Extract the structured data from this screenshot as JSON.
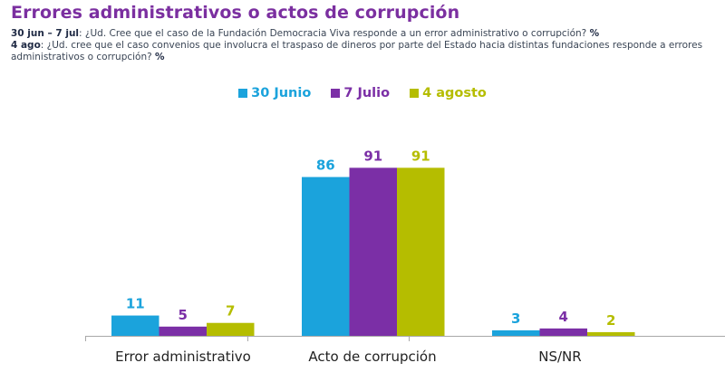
{
  "header": {
    "title": "Errores administrativos o actos de corrupción",
    "q1_label": "30 jun – 7 jul",
    "q1_text": ": ¿Ud. Cree que el caso de la Fundación Democracia Viva responde a un error administrativo o corrupción? ",
    "q1_unit": "%",
    "q2_label": "4 ago",
    "q2_text": ": ¿Ud. cree que el caso convenios que involucra el traspaso de dineros por parte del Estado hacia distintas fundaciones responde a errores administrativos o corrupción? ",
    "q2_unit": "%"
  },
  "chart_data": {
    "type": "bar",
    "title": "Errores administrativos o actos de corrupción",
    "xlabel": "",
    "ylabel": "%",
    "ylim": [
      0,
      100
    ],
    "grid": false,
    "legend_position": "top-center",
    "categories": [
      "Error administrativo",
      "Acto de corrupción",
      "NS/NR"
    ],
    "series": [
      {
        "name": "30 Junio",
        "color": "#1ba3dc",
        "values": [
          11,
          86,
          3
        ]
      },
      {
        "name": "7 Julio",
        "color": "#7b2fa6",
        "values": [
          5,
          91,
          4
        ]
      },
      {
        "name": "4 agosto",
        "color": "#b5bd00",
        "values": [
          7,
          91,
          2
        ]
      }
    ]
  }
}
